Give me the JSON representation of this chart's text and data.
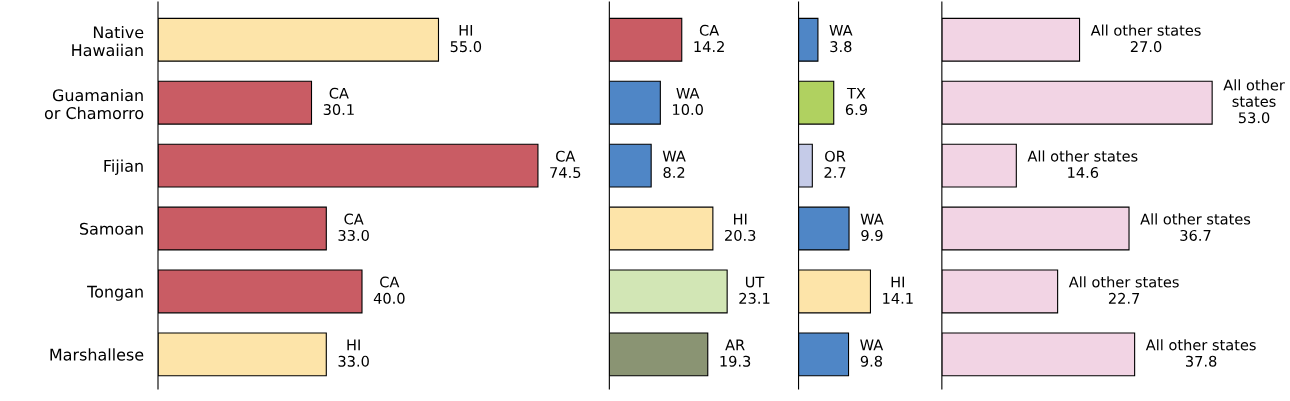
{
  "chart_data": [
    {
      "type": "bar",
      "orientation": "horizontal",
      "categories": [
        "Native\nHawaiian",
        "Guamanian\nor Chamorro",
        "Fijian",
        "Samoan",
        "Tongan",
        "Marshallese"
      ],
      "values": [
        55.0,
        30.1,
        74.5,
        33.0,
        40.0,
        33.0
      ],
      "colors": [
        "#fde4a9",
        "#c95c64",
        "#c95c64",
        "#c95c64",
        "#c95c64",
        "#fde4a9"
      ],
      "value_labels": [
        "HI\n55.0",
        "CA\n30.1",
        "CA\n74.5",
        "CA\n33.0",
        "CA\n40.0",
        "HI\n33.0"
      ],
      "tick_labels": "y"
    },
    {
      "type": "bar",
      "orientation": "horizontal",
      "categories": [
        null,
        null,
        null,
        null,
        null,
        null
      ],
      "values": [
        14.2,
        10.0,
        8.2,
        20.3,
        23.1,
        19.3
      ],
      "colors": [
        "#c95c64",
        "#4f86c6",
        "#4f86c6",
        "#fde4a9",
        "#d2e6b5",
        "#8a9473"
      ],
      "value_labels": [
        "CA\n14.2",
        "WA\n10.0",
        "WA\n8.2",
        "HI\n20.3",
        "UT\n23.1",
        "AR\n19.3"
      ],
      "tick_labels": false
    },
    {
      "type": "bar",
      "orientation": "horizontal",
      "categories": [
        null,
        null,
        null,
        null,
        null,
        null
      ],
      "values": [
        3.8,
        6.9,
        2.7,
        9.9,
        14.1,
        9.8
      ],
      "colors": [
        "#4f86c6",
        "#b0d160",
        "#c5cbe8",
        "#4f86c6",
        "#fde4a9",
        "#4f86c6"
      ],
      "value_labels": [
        "WA\n3.8",
        "TX\n6.9",
        "OR\n2.7",
        "WA\n9.9",
        "HI\n14.1",
        "WA\n9.8"
      ],
      "tick_labels": false
    },
    {
      "type": "bar",
      "orientation": "horizontal",
      "categories": [
        null,
        null,
        null,
        null,
        null,
        null
      ],
      "values": [
        27.0,
        53.0,
        14.6,
        36.7,
        22.7,
        37.8
      ],
      "colors": [
        "#f2d4e4",
        "#f2d4e4",
        "#f2d4e4",
        "#f2d4e4",
        "#f2d4e4",
        "#f2d4e4"
      ],
      "value_labels": [
        "All other states\n27.0",
        "All other\nstates\n53.0",
        "All other states\n14.6",
        "All other states\n36.7",
        "All other states\n22.7",
        "All other states\n37.8"
      ],
      "tick_labels": false
    }
  ]
}
